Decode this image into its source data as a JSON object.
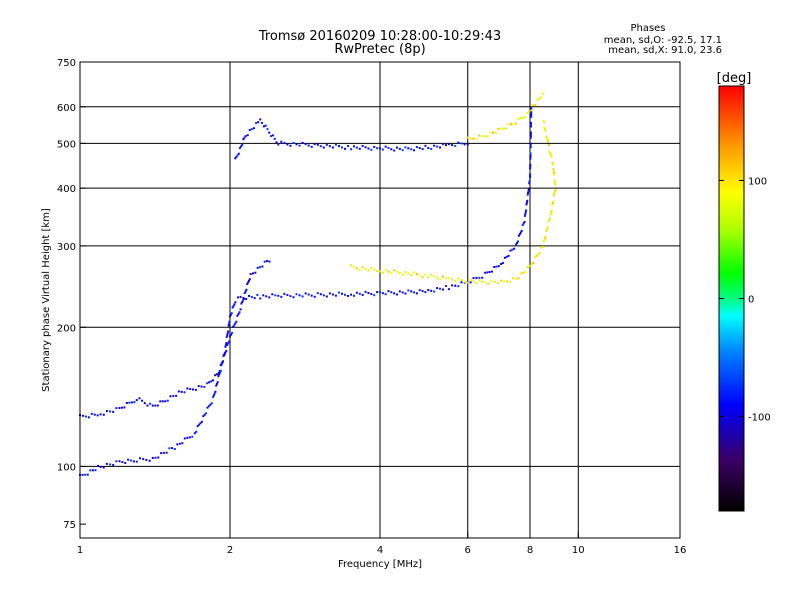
{
  "chart_data": {
    "type": "scatter",
    "title": "Tromsø 20160209 10:28:00-10:29:43",
    "subtitle": "RwPretec (8p)",
    "xlabel": "Frequency [MHz]",
    "ylabel": "Stationary phase Virtual Height [km]",
    "x_scale": "log",
    "y_scale": "log",
    "xlim": [
      1,
      16
    ],
    "ylim": [
      70,
      750
    ],
    "x_ticks": [
      1,
      2,
      4,
      6,
      8,
      10,
      16
    ],
    "y_ticks": [
      75,
      100,
      200,
      300,
      400,
      500,
      600,
      750
    ],
    "grid": true,
    "colorbar": {
      "label": "[deg]",
      "range": [
        -180,
        180
      ],
      "ticks": [
        100,
        0,
        -100
      ]
    },
    "stats": {
      "heading": "Phases",
      "line_o": "mean, sd,O:  -92.5, 17.1",
      "line_x": "mean, sd,X:  91.0, 23.6"
    },
    "traces": [
      {
        "mode": "O",
        "phase": -92.5,
        "x": [
          1.0,
          1.1,
          1.2,
          1.3,
          1.4,
          1.55,
          1.7,
          1.85,
          1.95,
          2.0,
          2.05,
          2.1,
          2.3,
          2.5,
          3.0,
          3.5,
          4.0,
          4.5,
          5.0,
          5.5,
          6.0,
          6.5,
          7.0,
          7.5,
          7.8,
          8.0,
          8.05
        ],
        "y": [
          95,
          100,
          102,
          103,
          104,
          110,
          118,
          140,
          175,
          210,
          228,
          232,
          233,
          234,
          235,
          236,
          237,
          238,
          240,
          244,
          250,
          260,
          275,
          300,
          340,
          420,
          600
        ]
      },
      {
        "mode": "O",
        "phase": -95,
        "x": [
          1.0,
          1.1,
          1.2,
          1.3,
          1.4,
          1.5,
          1.6,
          1.8,
          1.9,
          2.0,
          2.1,
          2.2,
          2.4
        ],
        "y": [
          128,
          130,
          133,
          140,
          135,
          140,
          145,
          150,
          160,
          190,
          220,
          260,
          280
        ]
      },
      {
        "mode": "O",
        "phase": -90,
        "x": [
          2.05,
          2.15,
          2.3,
          2.5,
          3.0,
          3.5,
          4.0,
          4.5,
          5.0,
          5.5,
          6.0
        ],
        "y": [
          460,
          520,
          560,
          500,
          495,
          490,
          488,
          486,
          490,
          495,
          500
        ]
      },
      {
        "mode": "X",
        "phase": 91,
        "x": [
          3.5,
          4.0,
          4.5,
          5.0,
          5.5,
          6.0,
          6.5,
          7.0,
          7.5,
          8.0,
          8.5,
          8.8,
          9.0,
          8.9,
          8.7,
          8.5
        ],
        "y": [
          270,
          265,
          262,
          258,
          255,
          252,
          250,
          250,
          255,
          270,
          300,
          350,
          400,
          450,
          500,
          560
        ]
      },
      {
        "mode": "X",
        "phase": 95,
        "x": [
          6.0,
          6.5,
          7.0,
          7.5,
          7.9,
          8.2,
          8.5
        ],
        "y": [
          510,
          520,
          535,
          555,
          580,
          610,
          640
        ]
      }
    ]
  }
}
